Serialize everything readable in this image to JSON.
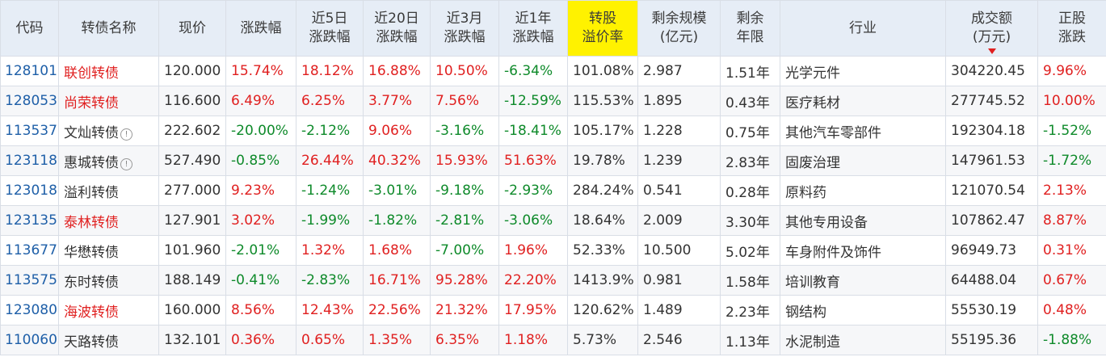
{
  "headers": [
    {
      "l1": "代码",
      "l2": ""
    },
    {
      "l1": "转债名称",
      "l2": ""
    },
    {
      "l1": "现价",
      "l2": ""
    },
    {
      "l1": "涨跌幅",
      "l2": ""
    },
    {
      "l1": "近5日",
      "l2": "涨跌幅"
    },
    {
      "l1": "近20日",
      "l2": "涨跌幅"
    },
    {
      "l1": "近3月",
      "l2": "涨跌幅"
    },
    {
      "l1": "近1年",
      "l2": "涨跌幅"
    },
    {
      "l1": "转股",
      "l2": "溢价率"
    },
    {
      "l1": "剩余规模",
      "l2": "(亿元)"
    },
    {
      "l1": "剩余",
      "l2": "年限"
    },
    {
      "l1": "行业",
      "l2": ""
    },
    {
      "l1": "成交额",
      "l2": "(万元)"
    },
    {
      "l1": "正股",
      "l2": "涨跌"
    }
  ],
  "accent_colors": {
    "up": "#e02020",
    "down": "#0e8a2a",
    "highlight": "#fff200",
    "code": "#1e5fa8"
  },
  "rows": [
    {
      "code": "128101",
      "name": "联创转债",
      "name_red": true,
      "info": false,
      "price": "120.000",
      "chg": "15.74%",
      "d5": "18.12%",
      "d20": "16.88%",
      "m3": "10.50%",
      "y1": "-6.34%",
      "premium": "101.08%",
      "scale": "2.987",
      "years": "1.51年",
      "industry": "光学元件",
      "turnover": "304220.45",
      "stock_chg": "9.96%"
    },
    {
      "code": "128053",
      "name": "尚荣转债",
      "name_red": true,
      "info": false,
      "price": "116.600",
      "chg": "6.49%",
      "d5": "6.25%",
      "d20": "3.77%",
      "m3": "7.56%",
      "y1": "-12.59%",
      "premium": "115.53%",
      "scale": "1.895",
      "years": "0.43年",
      "industry": "医疗耗材",
      "turnover": "277745.52",
      "stock_chg": "10.00%"
    },
    {
      "code": "113537",
      "name": "文灿转债",
      "name_red": false,
      "info": true,
      "price": "222.602",
      "chg": "-20.00%",
      "d5": "-2.12%",
      "d20": "9.06%",
      "m3": "-3.16%",
      "y1": "-18.41%",
      "premium": "105.17%",
      "scale": "1.228",
      "years": "0.75年",
      "industry": "其他汽车零部件",
      "turnover": "192304.18",
      "stock_chg": "-1.52%"
    },
    {
      "code": "123118",
      "name": "惠城转债",
      "name_red": false,
      "info": true,
      "price": "527.490",
      "chg": "-0.85%",
      "d5": "26.44%",
      "d20": "40.32%",
      "m3": "15.93%",
      "y1": "51.63%",
      "premium": "19.78%",
      "scale": "1.239",
      "years": "2.83年",
      "industry": "固废治理",
      "turnover": "147961.53",
      "stock_chg": "-1.72%"
    },
    {
      "code": "123018",
      "name": "溢利转债",
      "name_red": false,
      "info": false,
      "price": "277.000",
      "chg": "9.23%",
      "d5": "-1.24%",
      "d20": "-3.01%",
      "m3": "-9.18%",
      "y1": "-2.93%",
      "premium": "284.24%",
      "scale": "0.541",
      "years": "0.28年",
      "industry": "原料药",
      "turnover": "121070.54",
      "stock_chg": "2.13%"
    },
    {
      "code": "123135",
      "name": "泰林转债",
      "name_red": true,
      "info": false,
      "price": "127.901",
      "chg": "3.02%",
      "d5": "-1.99%",
      "d20": "-1.82%",
      "m3": "-2.81%",
      "y1": "-3.06%",
      "premium": "18.64%",
      "scale": "2.009",
      "years": "3.30年",
      "industry": "其他专用设备",
      "turnover": "107862.47",
      "stock_chg": "8.87%"
    },
    {
      "code": "113677",
      "name": "华懋转债",
      "name_red": false,
      "info": false,
      "price": "101.960",
      "chg": "-2.01%",
      "d5": "1.32%",
      "d20": "1.68%",
      "m3": "-7.00%",
      "y1": "1.96%",
      "premium": "52.33%",
      "scale": "10.500",
      "years": "5.02年",
      "industry": "车身附件及饰件",
      "turnover": "96949.73",
      "stock_chg": "0.31%"
    },
    {
      "code": "113575",
      "name": "东时转债",
      "name_red": false,
      "info": false,
      "price": "188.149",
      "chg": "-0.41%",
      "d5": "-2.83%",
      "d20": "16.71%",
      "m3": "95.28%",
      "y1": "22.20%",
      "premium": "1413.9%",
      "scale": "0.981",
      "years": "1.58年",
      "industry": "培训教育",
      "turnover": "64488.04",
      "stock_chg": "0.67%"
    },
    {
      "code": "123080",
      "name": "海波转债",
      "name_red": true,
      "info": false,
      "price": "160.000",
      "chg": "8.56%",
      "d5": "12.43%",
      "d20": "22.56%",
      "m3": "21.32%",
      "y1": "17.95%",
      "premium": "120.62%",
      "scale": "1.489",
      "years": "2.23年",
      "industry": "钢结构",
      "turnover": "55530.19",
      "stock_chg": "0.48%"
    },
    {
      "code": "110060",
      "name": "天路转债",
      "name_red": false,
      "info": false,
      "price": "132.101",
      "chg": "0.36%",
      "d5": "0.65%",
      "d20": "1.35%",
      "m3": "6.35%",
      "y1": "1.18%",
      "premium": "5.73%",
      "scale": "2.546",
      "years": "1.13年",
      "industry": "水泥制造",
      "turnover": "55195.36",
      "stock_chg": "-1.88%"
    }
  ]
}
